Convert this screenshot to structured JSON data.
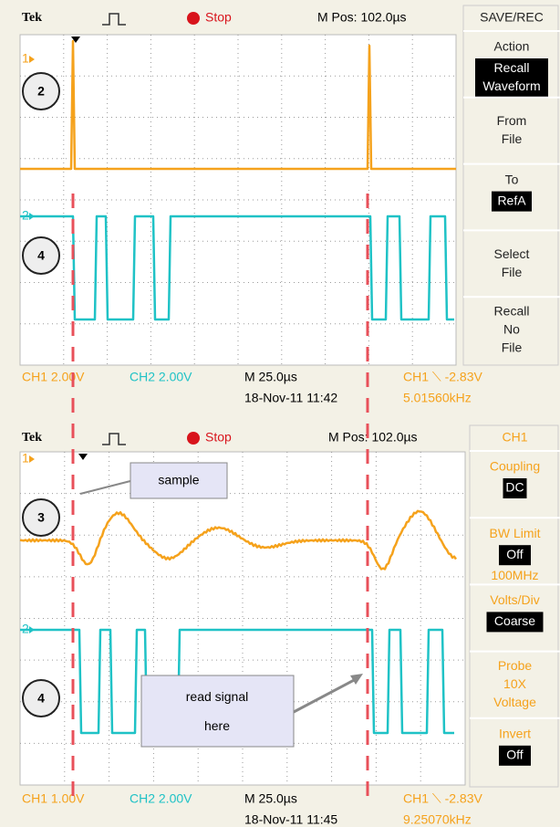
{
  "panels": [
    {
      "header": {
        "brand": "Tek",
        "status": "Stop",
        "position": "M Pos: 102.0µs"
      },
      "channel_markers": [
        "1",
        "2"
      ],
      "badges": [
        "2",
        "4"
      ],
      "menu": {
        "title": "SAVE/REC",
        "items": [
          {
            "label": "Action",
            "value": "Recall Waveform"
          },
          {
            "label": "From File"
          },
          {
            "label": "To",
            "value": "RefA"
          },
          {
            "label": "Select File"
          },
          {
            "label": "Recall No File"
          }
        ]
      },
      "footer": {
        "ch1": "CH1  2.00V",
        "ch2": "CH2  2.00V",
        "timebase": "M 25.0µs",
        "date": "18-Nov-11 11:42",
        "trigger": "CH1 ⟍ -2.83V",
        "frequency": "5.01560kHz"
      }
    },
    {
      "header": {
        "brand": "Tek",
        "status": "Stop",
        "position": "M Pos: 102.0µs"
      },
      "channel_markers": [
        "1",
        "2"
      ],
      "badges": [
        "3",
        "4"
      ],
      "callouts": [
        "sample",
        "read signal here"
      ],
      "menu": {
        "title": "CH1",
        "items": [
          {
            "label": "Coupling",
            "value": "DC"
          },
          {
            "label": "BW Limit",
            "value": "Off",
            "note": "100MHz"
          },
          {
            "label": "Volts/Div",
            "value": "Coarse"
          },
          {
            "label": "Probe 10X Voltage"
          },
          {
            "label": "Invert",
            "value": "Off"
          }
        ]
      },
      "footer": {
        "ch1": "CH1  1.00V",
        "ch2": "CH2  2.00V",
        "timebase": "M 25.0µs",
        "date": "18-Nov-11 11:45",
        "trigger": "CH1 ⟍ -2.83V",
        "frequency": "9.25070kHz"
      }
    }
  ]
}
